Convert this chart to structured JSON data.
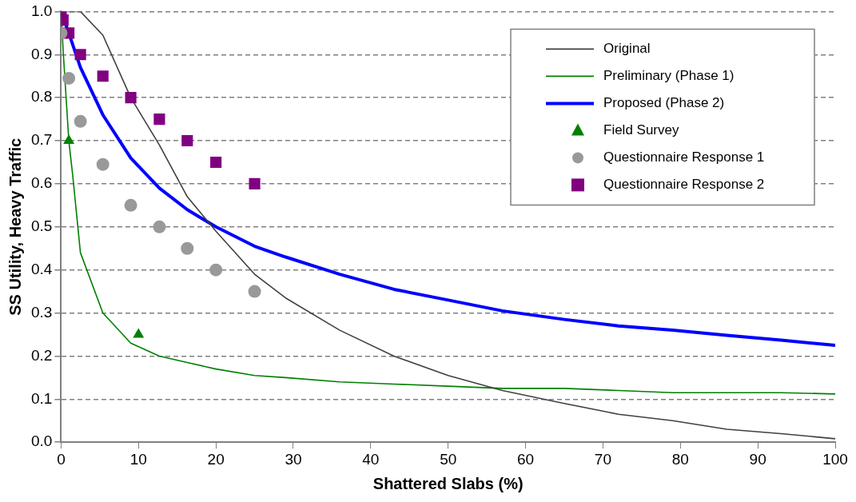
{
  "chart_data": {
    "type": "line",
    "xlabel": "Shattered Slabs (%)",
    "ylabel": "SS Utility, Heavy Traffic",
    "xlim": [
      0,
      100
    ],
    "xticks": [
      0,
      10,
      20,
      30,
      40,
      50,
      60,
      70,
      80,
      90,
      100
    ],
    "ylim": [
      0,
      1
    ],
    "yticks": [
      {
        "value": 0,
        "label": "0.0"
      },
      {
        "value": 0.1,
        "label": "0.1"
      },
      {
        "value": 0.2,
        "label": "0.2"
      },
      {
        "value": 0.3,
        "label": "0.3"
      },
      {
        "value": 0.4,
        "label": "0.4"
      },
      {
        "value": 0.5,
        "label": "0.5"
      },
      {
        "value": 0.6,
        "label": "0.6"
      },
      {
        "value": 0.7,
        "label": "0.7"
      },
      {
        "value": 0.8,
        "label": "0.8"
      },
      {
        "value": 0.9,
        "label": "0.9"
      },
      {
        "value": 1,
        "label": "1.0"
      }
    ],
    "grid": "y",
    "legend": "top right",
    "series": [
      {
        "name": "Original",
        "type": "line",
        "color": "#404040",
        "marker": "none",
        "x": [
          0,
          2.5,
          5.4,
          9,
          12.7,
          16.3,
          20,
          25,
          29,
          36,
          43,
          50,
          57,
          65,
          72,
          79,
          86,
          93,
          100
        ],
        "values": [
          1,
          1,
          0.945,
          0.8,
          0.69,
          0.57,
          0.49,
          0.39,
          0.335,
          0.26,
          0.2,
          0.155,
          0.12,
          0.09,
          0.065,
          0.05,
          0.03,
          0.02,
          0.008
        ]
      },
      {
        "name": "Preliminary (Phase 1)",
        "type": "line",
        "color": "#008000",
        "marker": "none",
        "x": [
          0,
          0.3,
          1,
          1.5,
          2.5,
          5.4,
          9,
          12.7,
          16.3,
          20,
          25,
          29,
          36,
          43,
          50,
          57,
          65,
          72,
          79,
          86,
          93,
          100
        ],
        "values": [
          1,
          0.9,
          0.7,
          0.62,
          0.44,
          0.3,
          0.23,
          0.2,
          0.185,
          0.17,
          0.155,
          0.15,
          0.14,
          0.135,
          0.13,
          0.125,
          0.125,
          0.12,
          0.115,
          0.115,
          0.115,
          0.112
        ]
      },
      {
        "name": "Proposed (Phase 2)",
        "type": "line",
        "color": "#0000ff",
        "marker": "none",
        "x": [
          0,
          1,
          2.5,
          5.4,
          9,
          12.7,
          16.3,
          20,
          25,
          29,
          36,
          43,
          50,
          57,
          65,
          72,
          79,
          86,
          93,
          100
        ],
        "values": [
          1,
          0.95,
          0.87,
          0.76,
          0.66,
          0.59,
          0.54,
          0.5,
          0.455,
          0.43,
          0.39,
          0.355,
          0.33,
          0.305,
          0.285,
          0.27,
          0.26,
          0.248,
          0.237,
          0.225
        ]
      },
      {
        "name": "Field Survey",
        "type": "scatter",
        "color": "#008000",
        "marker": "triangle",
        "x": [
          1,
          10
        ],
        "values": [
          0.7,
          0.25
        ]
      },
      {
        "name": "Questionnaire Response 1",
        "type": "scatter",
        "color": "#999999",
        "marker": "circle",
        "x": [
          0,
          1,
          2.5,
          5.4,
          9,
          12.7,
          16.3,
          20,
          25
        ],
        "values": [
          0.95,
          0.845,
          0.745,
          0.645,
          0.55,
          0.5,
          0.45,
          0.4,
          0.35
        ]
      },
      {
        "name": "Questionnaire Response 2",
        "type": "scatter",
        "color": "#800080",
        "marker": "square",
        "x": [
          0,
          0.25,
          1,
          2.5,
          5.4,
          9,
          12.7,
          16.3,
          20,
          25
        ],
        "values": [
          1,
          0.98,
          0.95,
          0.9,
          0.85,
          0.8,
          0.75,
          0.7,
          0.65,
          0.6
        ]
      }
    ]
  }
}
